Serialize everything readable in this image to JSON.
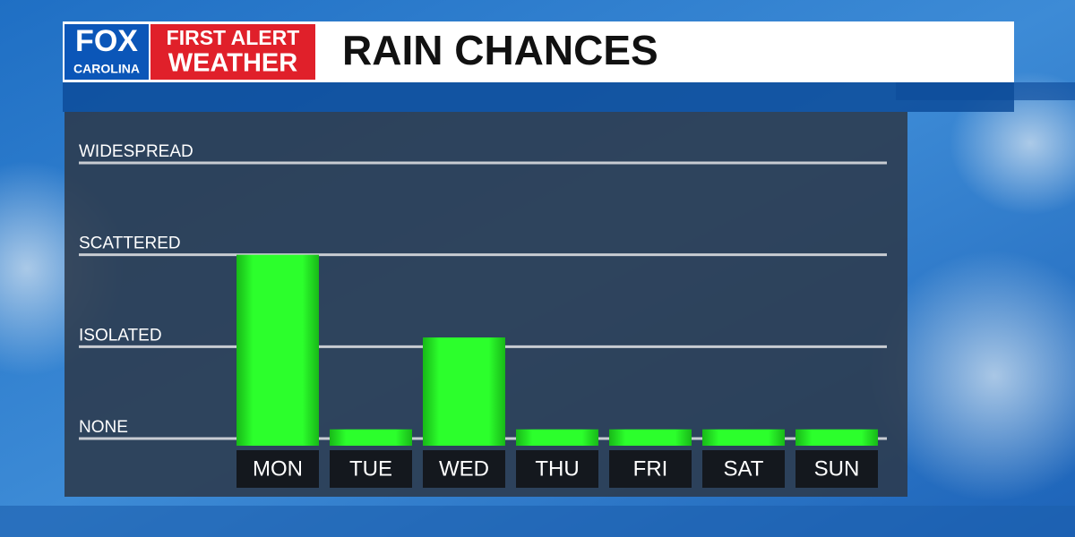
{
  "logo": {
    "brand": "FOX",
    "station": "CAROLINA",
    "line1": "FIRST ALERT",
    "line2": "WEATHER"
  },
  "chart_data": {
    "type": "bar",
    "title": "RAIN CHANCES",
    "categories": [
      "MON",
      "TUE",
      "WED",
      "THU",
      "FRI",
      "SAT",
      "SUN"
    ],
    "values": [
      2,
      0.1,
      1.1,
      0.1,
      0.1,
      0.1,
      0.1
    ],
    "color": "#22ee22",
    "ylim": [
      0,
      3
    ],
    "yticks": [
      {
        "value": 0,
        "label": "NONE"
      },
      {
        "value": 1,
        "label": "ISOLATED"
      },
      {
        "value": 2,
        "label": "SCATTERED"
      },
      {
        "value": 3,
        "label": "WIDESPREAD"
      }
    ],
    "grid": true
  }
}
